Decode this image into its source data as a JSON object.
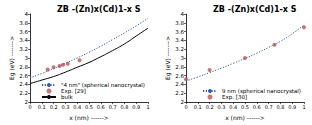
{
  "chart_data": [
    {
      "type": "line",
      "title": "ZB -(Zn)x(Cd)1-x S",
      "x_label": "x (nm) ------>",
      "y_label": "Eg (eV) ------->",
      "xlim": [
        0,
        1
      ],
      "xticks": [
        0,
        0.1,
        0.2,
        0.3,
        0.4,
        0.5,
        0.6,
        0.7,
        0.8,
        0.9,
        1
      ],
      "ylim": [
        2,
        4
      ],
      "yticks": [
        2,
        2.2,
        2.4,
        2.6,
        2.8,
        3,
        3.2,
        3.4,
        3.6,
        3.8,
        4
      ],
      "grid": false,
      "legend": "lower right",
      "series": [
        {
          "name": "\"4 nm\" (spherical nanocrystal)",
          "type": "line",
          "line_style": "dotted",
          "color": "#2f5fb3",
          "x": [
            0,
            0.1,
            0.2,
            0.3,
            0.4,
            0.5,
            0.6,
            0.7,
            0.8,
            0.9,
            1
          ],
          "values": [
            2.55,
            2.65,
            2.76,
            2.88,
            3.0,
            3.13,
            3.27,
            3.42,
            3.57,
            3.73,
            3.9
          ]
        },
        {
          "name": "Exp. [29]",
          "type": "scatter",
          "marker": "circle",
          "color": "#c0504d",
          "x": [
            0.15,
            0.2,
            0.25,
            0.28,
            0.32,
            0.42
          ],
          "values": [
            2.74,
            2.79,
            2.82,
            2.85,
            2.87,
            2.95
          ]
        },
        {
          "name": "bulk",
          "type": "line",
          "line_style": "solid",
          "color": "#000000",
          "x": [
            0,
            0.1,
            0.2,
            0.3,
            0.4,
            0.5,
            0.6,
            0.7,
            0.8,
            0.9,
            1
          ],
          "values": [
            2.42,
            2.5,
            2.58,
            2.68,
            2.79,
            2.9,
            3.03,
            3.17,
            3.32,
            3.5,
            3.68
          ]
        }
      ]
    },
    {
      "type": "line",
      "title": "ZB -(Zn)x(Cd)1-x S",
      "x_label": "x (nm) ------>",
      "y_label": "Eg (eV) ------->",
      "xlim": [
        0,
        1
      ],
      "xticks": [
        0,
        0.1,
        0.2,
        0.3,
        0.4,
        0.5,
        0.6,
        0.7,
        0.8,
        0.9,
        1
      ],
      "ylim": [
        2,
        4
      ],
      "yticks": [
        2,
        2.2,
        2.4,
        2.6,
        2.8,
        3,
        3.2,
        3.4,
        3.6,
        3.8,
        4
      ],
      "grid": false,
      "legend": "lower right",
      "series": [
        {
          "name": "9 nm (spherical nanocrystal)",
          "type": "line",
          "line_style": "dotted",
          "color": "#2f5fb3",
          "x": [
            0,
            0.1,
            0.2,
            0.3,
            0.4,
            0.5,
            0.6,
            0.7,
            0.8,
            0.9,
            1
          ],
          "values": [
            2.48,
            2.57,
            2.67,
            2.77,
            2.88,
            2.99,
            3.11,
            3.24,
            3.38,
            3.55,
            3.75
          ]
        },
        {
          "name": "Exp. [30]",
          "type": "scatter",
          "marker": "circle",
          "color": "#c0504d",
          "x": [
            0,
            0.2,
            0.5,
            0.75,
            1
          ],
          "values": [
            2.52,
            2.73,
            3.0,
            3.3,
            3.7
          ]
        }
      ]
    }
  ]
}
